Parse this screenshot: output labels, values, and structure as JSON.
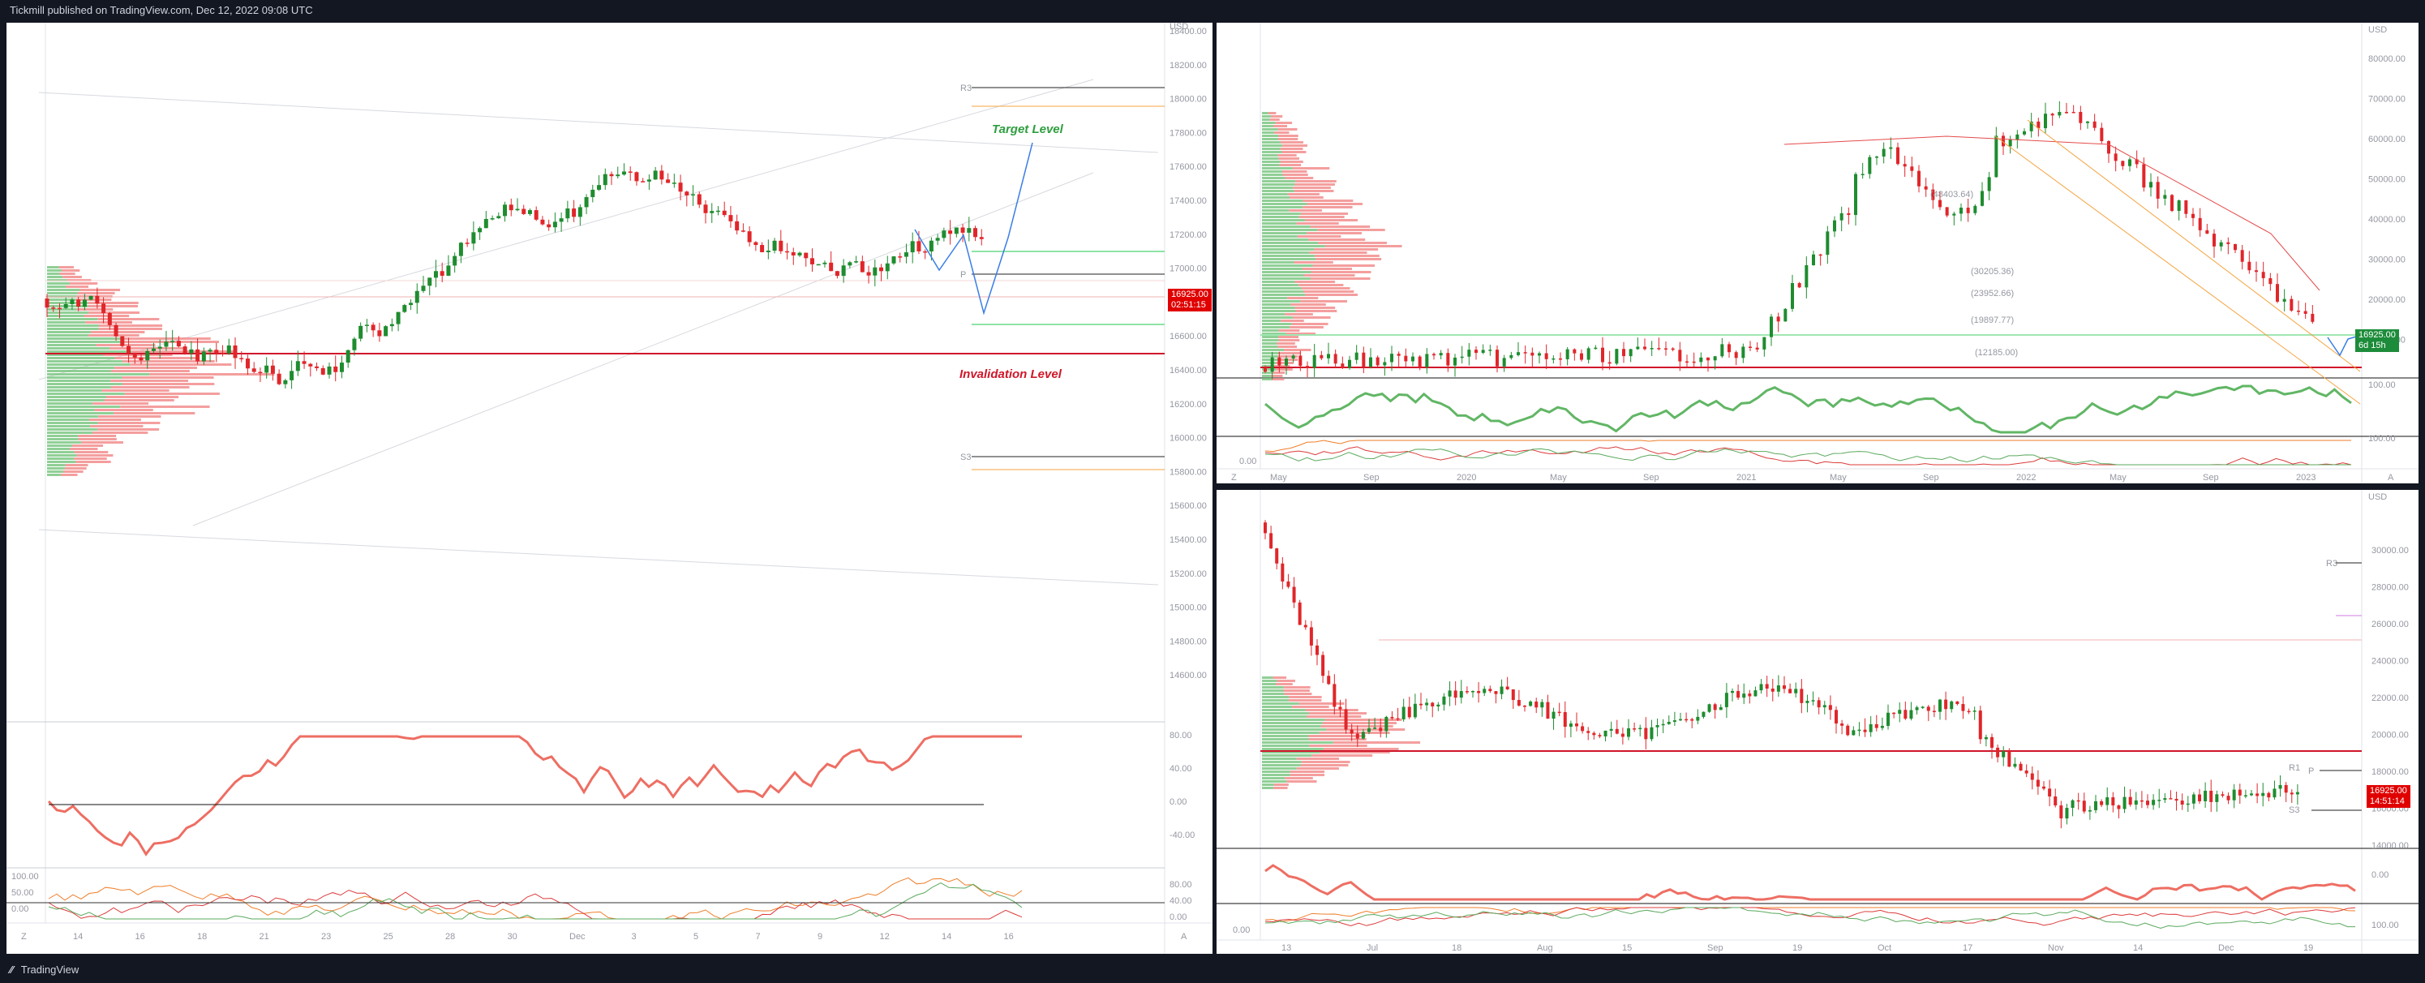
{
  "header": {
    "publisher_line": "Tickmill published on TradingView.com, Dec 12, 2022 09:08 UTC"
  },
  "footer": {
    "logo": "TradingView"
  },
  "colors": {
    "bull": "#1e8c2f",
    "bear": "#e0262a",
    "bg": "#ffffff",
    "frame": "#131722",
    "axis_text": "#9598a1",
    "grid": "#e9ebf0",
    "target": "#2e9e3e",
    "invalid": "#d0162a",
    "projection": "#3a7ee6",
    "osc_up": "#61b665",
    "osc_down": "#ee6e63"
  },
  "left_chart": {
    "currency": "USD",
    "price_ticks": [
      "18400.00",
      "18200.00",
      "18000.00",
      "17800.00",
      "17600.00",
      "17400.00",
      "17200.00",
      "17000.00",
      "16800.00",
      "16600.00",
      "16400.00",
      "16200.00",
      "16000.00",
      "15800.00",
      "15600.00",
      "15400.00",
      "15200.00",
      "15000.00",
      "14800.00",
      "14600.00"
    ],
    "last_price": "16925.00",
    "countdown": "02:51:15",
    "target_label": "Target Level",
    "invalidation_label": "Invalidation Level",
    "pivot_r3": "R3",
    "pivot_p": "P",
    "pivot_s3": "S3",
    "rsi_ticks": [
      "80.00",
      "40.00",
      "0.00",
      "-40.00"
    ],
    "stoch_ticks": [
      "100.00",
      "50.00",
      "0.00"
    ],
    "stoch_ticks_right": [
      "80.00",
      "40.00",
      "0.00"
    ],
    "time_ticks": [
      "14",
      "16",
      "18",
      "21",
      "23",
      "25",
      "28",
      "30",
      "Dec",
      "3",
      "5",
      "7",
      "9",
      "12",
      "14",
      "16"
    ],
    "z_btn": "Z",
    "a_btn": "A"
  },
  "top_right_chart": {
    "currency": "USD",
    "price_ticks": [
      "80000.00",
      "70000.00",
      "60000.00",
      "50000.00",
      "40000.00",
      "30000.00",
      "20000.00",
      "10000.00"
    ],
    "osc_ticks": [
      "100.00",
      "100.00",
      "0.00"
    ],
    "last_price": "16925.00",
    "countdown": "6d 15h",
    "level_labels": [
      "(48403.64)",
      "(30205.36)",
      "(23952.66)",
      "(19897.77)",
      "(12185.00)"
    ],
    "time_ticks": [
      "May",
      "Sep",
      "2020",
      "May",
      "Sep",
      "2021",
      "May",
      "Sep",
      "2022",
      "May",
      "Sep",
      "2023"
    ],
    "z_btn": "Z",
    "a_btn": "A"
  },
  "bottom_right_chart": {
    "currency": "USD",
    "price_ticks": [
      "30000.00",
      "28000.00",
      "26000.00",
      "24000.00",
      "22000.00",
      "20000.00",
      "18000.00",
      "16000.00",
      "14000.00"
    ],
    "osc_ticks": [
      "0.00",
      "100.00",
      "0.00"
    ],
    "last_price": "16925.00",
    "countdown": "14:51:14",
    "pivot_r3": "R3",
    "pivot_p": "P",
    "pivot_r1": "R1",
    "pivot_s3": "S3",
    "time_ticks": [
      "13",
      "Jul",
      "18",
      "Aug",
      "15",
      "Sep",
      "19",
      "Oct",
      "17",
      "Nov",
      "14",
      "Dec",
      "19"
    ]
  }
}
